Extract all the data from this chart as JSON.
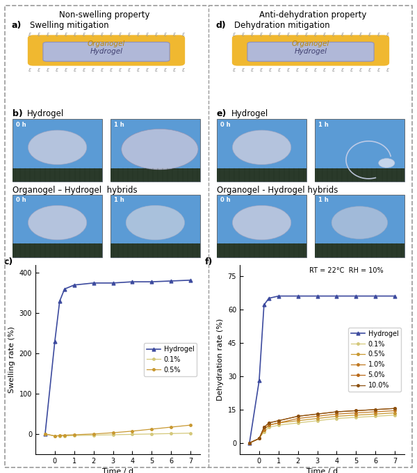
{
  "title_left": "Non-swelling property",
  "title_right": "Anti-dehydration property",
  "label_a": "a)",
  "label_b": "b)",
  "label_c": "c)",
  "label_d": "d)",
  "label_e": "e)",
  "label_f": "f)",
  "scheme_a_title": "Swelling mitigation",
  "scheme_d_title": "Dehydration mitigation",
  "organogel_label": "Organogel",
  "hydrogel_label": "Hydrogel",
  "hydrogel_section_b": "Hydrogel",
  "organogel_hybrid_b": "Organogel – Hydrogel  hybrids",
  "hydrogel_section_e": "Hydrogel",
  "organogel_hybrid_e": "Organogel - Hydrogel hybrids",
  "photo_bg_color": "#5b9bd5",
  "photo_dark_strip": "#2a3a2a",
  "organogel_box_color": "#f0b830",
  "hydrogel_box_color": "#b0b8d8",
  "xlabel": "Time / d",
  "ylabel_c": "Swelling rate (%)",
  "ylabel_f": "Dehydration rate (%)",
  "note_f": "RT = 22°C  RH = 10%",
  "swelling_time": [
    -0.5,
    0,
    0.25,
    0.5,
    1,
    2,
    3,
    4,
    5,
    6,
    7
  ],
  "swelling_hydrogel": [
    0,
    230,
    330,
    360,
    370,
    375,
    375,
    378,
    378,
    380,
    382
  ],
  "swelling_01": [
    0,
    -5,
    -5,
    -5,
    -4,
    -3,
    -2,
    -1,
    0,
    1,
    2
  ],
  "swelling_05": [
    0,
    -5,
    -4,
    -3,
    -2,
    0,
    3,
    7,
    12,
    17,
    22
  ],
  "dehydration_time": [
    -0.5,
    0,
    0.25,
    0.5,
    1,
    2,
    3,
    4,
    5,
    6,
    7
  ],
  "dehydration_hydrogel": [
    0,
    28,
    62,
    65,
    66,
    66,
    66,
    66,
    66,
    66,
    66
  ],
  "dehydration_01": [
    0,
    2,
    5,
    7,
    8,
    9,
    10,
    11,
    11.5,
    12,
    12.5
  ],
  "dehydration_05": [
    0,
    2,
    6,
    8,
    9,
    10,
    11,
    12,
    12.5,
    13,
    13.5
  ],
  "dehydration_10": [
    0,
    2,
    6,
    8,
    9,
    11,
    12,
    13,
    13.5,
    14,
    14.5
  ],
  "dehydration_50": [
    0,
    2,
    7,
    9,
    10,
    12,
    13,
    14,
    14.5,
    15,
    15.5
  ],
  "dehydration_100": [
    0,
    2,
    7,
    9,
    10,
    12,
    13,
    14,
    14.5,
    15,
    15.5
  ],
  "color_hydrogel": "#3c4a9e",
  "color_01": "#d4c87a",
  "color_05": "#c89830",
  "color_10": "#c07820",
  "color_50": "#b86818",
  "color_100": "#8b5010",
  "bg_color": "#ffffff",
  "dashed_border_color": "#999999",
  "ylim_swelling": [
    -50,
    420
  ],
  "ylim_dehydration": [
    -5,
    80
  ],
  "yticks_swelling": [
    0,
    100,
    200,
    300,
    400
  ],
  "yticks_dehydration": [
    0,
    15,
    30,
    45,
    60,
    75
  ]
}
